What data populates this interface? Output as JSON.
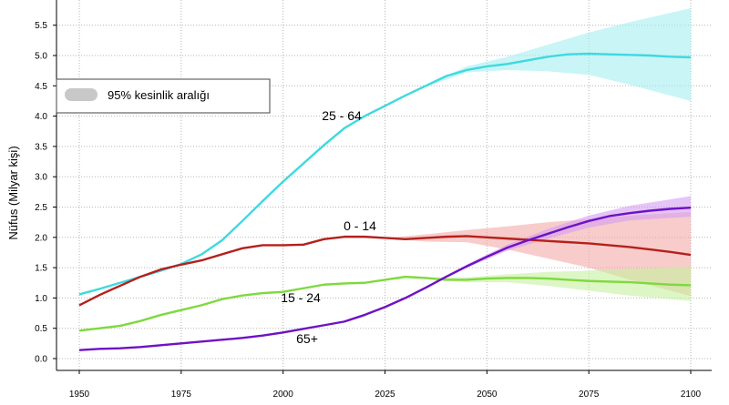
{
  "chart_data": {
    "type": "line",
    "title": "",
    "xlabel": "",
    "ylabel": "Nüfus (Milyar kişi)",
    "xlim": [
      1950,
      2100
    ],
    "ylim": [
      -0.2,
      5.9
    ],
    "x_ticks": [
      1950,
      1975,
      2000,
      2025,
      2050,
      2075,
      2100
    ],
    "y_ticks": [
      "0.0",
      "0.5",
      "1.0",
      "1.5",
      "2.0",
      "2.5",
      "3.0",
      "3.5",
      "4.0",
      "4.5",
      "5.0",
      "5.5"
    ],
    "grid": true,
    "legend": {
      "placement": "top-left",
      "label": "95%  kesinlik aralığı",
      "swatch_color": "#c8c8c8"
    },
    "series": [
      {
        "name": "25 - 64",
        "color": "#3fd9df",
        "band_color": "#a5eef2",
        "x": [
          1950,
          1955,
          1960,
          1965,
          1970,
          1975,
          1980,
          1985,
          1990,
          1995,
          2000,
          2005,
          2010,
          2015,
          2020,
          2025,
          2030,
          2035,
          2040,
          2045,
          2050,
          2055,
          2060,
          2065,
          2070,
          2075,
          2080,
          2085,
          2090,
          2095,
          2100
        ],
        "values": [
          1.06,
          1.15,
          1.25,
          1.35,
          1.45,
          1.56,
          1.72,
          1.95,
          2.27,
          2.6,
          2.92,
          3.22,
          3.52,
          3.8,
          4.0,
          4.17,
          4.34,
          4.5,
          4.66,
          4.76,
          4.82,
          4.86,
          4.92,
          4.98,
          5.02,
          5.03,
          5.02,
          5.01,
          5.0,
          4.98,
          4.97
        ],
        "band_x": [
          2025,
          2035,
          2045,
          2055,
          2065,
          2075,
          2085,
          2100
        ],
        "band_upper": [
          4.17,
          4.52,
          4.82,
          4.98,
          5.18,
          5.38,
          5.55,
          5.78
        ],
        "band_lower": [
          4.17,
          4.48,
          4.72,
          4.76,
          4.74,
          4.68,
          4.52,
          4.25
        ],
        "label": "25 - 64"
      },
      {
        "name": "0 - 14",
        "color": "#b4211c",
        "band_color": "#f3aaa8",
        "x": [
          1950,
          1955,
          1960,
          1965,
          1970,
          1975,
          1980,
          1985,
          1990,
          1995,
          2000,
          2005,
          2010,
          2015,
          2020,
          2025,
          2030,
          2035,
          2040,
          2045,
          2050,
          2055,
          2060,
          2065,
          2070,
          2075,
          2080,
          2085,
          2090,
          2095,
          2100
        ],
        "values": [
          0.88,
          1.05,
          1.2,
          1.35,
          1.47,
          1.55,
          1.62,
          1.72,
          1.82,
          1.87,
          1.87,
          1.88,
          1.97,
          2.01,
          2.01,
          1.99,
          1.97,
          1.99,
          2.01,
          2.02,
          2.0,
          1.98,
          1.96,
          1.94,
          1.92,
          1.9,
          1.87,
          1.84,
          1.8,
          1.76,
          1.71
        ],
        "band_x": [
          2025,
          2035,
          2045,
          2055,
          2065,
          2075,
          2085,
          2100
        ],
        "band_upper": [
          1.99,
          2.05,
          2.12,
          2.18,
          2.25,
          2.3,
          2.36,
          2.42
        ],
        "band_lower": [
          1.99,
          1.93,
          1.92,
          1.8,
          1.65,
          1.5,
          1.3,
          1.03
        ],
        "label": "0 - 14"
      },
      {
        "name": "15 - 24",
        "color": "#7ed93f",
        "band_color": "#c6f09f",
        "x": [
          1950,
          1955,
          1960,
          1965,
          1970,
          1975,
          1980,
          1985,
          1990,
          1995,
          2000,
          2005,
          2010,
          2015,
          2020,
          2025,
          2030,
          2035,
          2040,
          2045,
          2050,
          2055,
          2060,
          2065,
          2070,
          2075,
          2080,
          2085,
          2090,
          2095,
          2100
        ],
        "values": [
          0.46,
          0.5,
          0.54,
          0.62,
          0.72,
          0.8,
          0.88,
          0.98,
          1.04,
          1.08,
          1.1,
          1.16,
          1.22,
          1.24,
          1.25,
          1.3,
          1.35,
          1.33,
          1.3,
          1.3,
          1.32,
          1.33,
          1.33,
          1.32,
          1.3,
          1.28,
          1.27,
          1.26,
          1.24,
          1.22,
          1.21
        ],
        "band_x": [
          2025,
          2035,
          2045,
          2055,
          2065,
          2075,
          2085,
          2100
        ],
        "band_upper": [
          1.3,
          1.34,
          1.34,
          1.39,
          1.43,
          1.45,
          1.48,
          1.52
        ],
        "band_lower": [
          1.3,
          1.32,
          1.26,
          1.26,
          1.2,
          1.12,
          1.04,
          0.95
        ],
        "label": "15 - 24"
      },
      {
        "name": "65+",
        "color": "#6e12c4",
        "band_color": "#d49cf2",
        "x": [
          1950,
          1955,
          1960,
          1965,
          1970,
          1975,
          1980,
          1985,
          1990,
          1995,
          2000,
          2005,
          2010,
          2015,
          2020,
          2025,
          2030,
          2035,
          2040,
          2045,
          2050,
          2055,
          2060,
          2065,
          2070,
          2075,
          2080,
          2085,
          2090,
          2095,
          2100
        ],
        "values": [
          0.14,
          0.16,
          0.17,
          0.19,
          0.22,
          0.25,
          0.28,
          0.31,
          0.34,
          0.38,
          0.43,
          0.49,
          0.55,
          0.61,
          0.72,
          0.85,
          1.0,
          1.17,
          1.35,
          1.52,
          1.68,
          1.83,
          1.95,
          2.06,
          2.17,
          2.27,
          2.35,
          2.4,
          2.44,
          2.47,
          2.49
        ],
        "band_x": [
          2025,
          2035,
          2045,
          2055,
          2065,
          2075,
          2085,
          2100
        ],
        "band_upper": [
          0.85,
          1.18,
          1.55,
          1.88,
          2.14,
          2.36,
          2.52,
          2.68
        ],
        "band_lower": [
          0.85,
          1.16,
          1.5,
          1.78,
          1.98,
          2.16,
          2.28,
          2.34
        ],
        "label": "65+"
      }
    ]
  }
}
